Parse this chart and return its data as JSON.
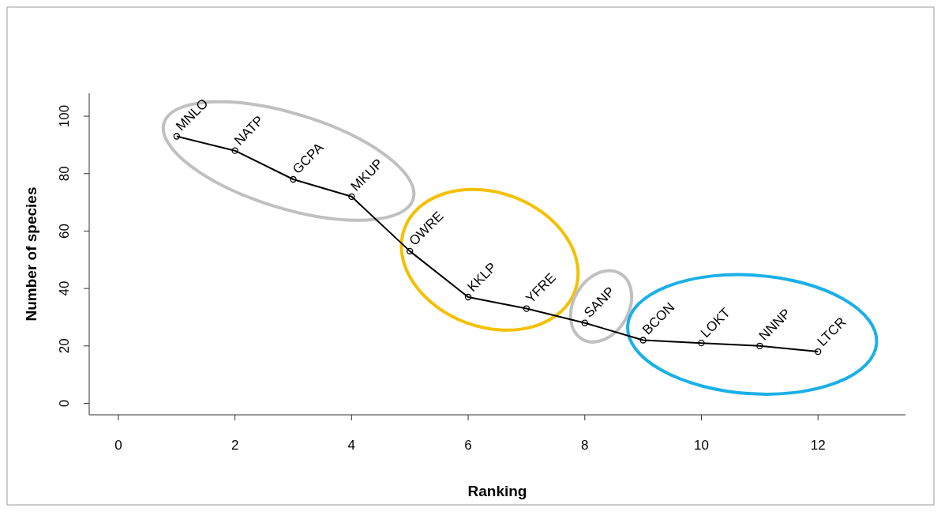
{
  "chart_data": {
    "type": "line",
    "xlabel": "Ranking",
    "ylabel": "Number of species",
    "x": [
      1,
      2,
      3,
      4,
      5,
      6,
      7,
      8,
      9,
      10,
      11,
      12
    ],
    "series": [
      {
        "color": "#000000",
        "values": [
          93,
          88,
          78,
          72,
          53,
          37,
          33,
          28,
          22,
          21,
          20,
          18
        ]
      }
    ],
    "annotations": [
      {
        "text": "MNLO",
        "x": 1,
        "y": 93
      },
      {
        "text": "NATP",
        "x": 2,
        "y": 88
      },
      {
        "text": "GCPA",
        "x": 3,
        "y": 78
      },
      {
        "text": "MKUP",
        "x": 4,
        "y": 72
      },
      {
        "text": "OWRE",
        "x": 5,
        "y": 53
      },
      {
        "text": "KKLP",
        "x": 6,
        "y": 37
      },
      {
        "text": "YFRE",
        "x": 7,
        "y": 33
      },
      {
        "text": "SANP",
        "x": 8,
        "y": 28
      },
      {
        "text": "BCON",
        "x": 9,
        "y": 22
      },
      {
        "text": "LOKT",
        "x": 10,
        "y": 21
      },
      {
        "text": "NNNP",
        "x": 11,
        "y": 20
      },
      {
        "text": "LTCR",
        "x": 12,
        "y": 18
      }
    ],
    "xlim": [
      -0.5,
      13.5
    ],
    "ylim": [
      -4,
      108
    ],
    "xticks": [
      0,
      2,
      4,
      6,
      8,
      10,
      12
    ],
    "yticks": [
      0,
      20,
      40,
      60,
      80,
      100
    ],
    "marker": "circle",
    "line_style": "solid",
    "grid": false
  }
}
